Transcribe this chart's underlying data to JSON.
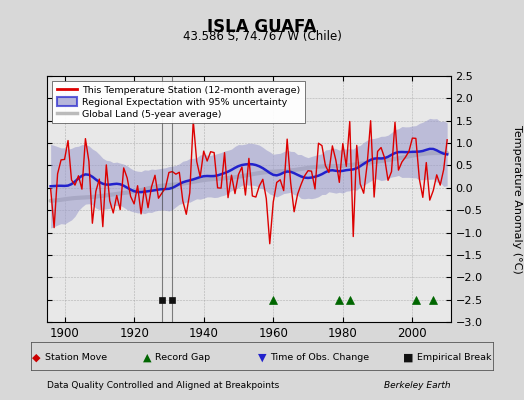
{
  "title": "ISLA GUAFA",
  "subtitle": "43.586 S, 74.767 W (Chile)",
  "ylabel": "Temperature Anomaly (°C)",
  "footer_left": "Data Quality Controlled and Aligned at Breakpoints",
  "footer_right": "Berkeley Earth",
  "xlim": [
    1895,
    2011
  ],
  "ylim": [
    -3.0,
    2.5
  ],
  "yticks": [
    -3,
    -2.5,
    -2,
    -1.5,
    -1,
    -0.5,
    0,
    0.5,
    1,
    1.5,
    2,
    2.5
  ],
  "xticks": [
    1900,
    1920,
    1940,
    1960,
    1980,
    2000
  ],
  "bg_color": "#d8d8d8",
  "plot_bg_color": "#e8e8e8",
  "station_line_color": "#dd0000",
  "regional_line_color": "#2222cc",
  "regional_fill_color": "#9999cc",
  "global_line_color": "#bbbbbb",
  "year_start": 1896,
  "year_end": 2010,
  "record_gap_years": [
    1960,
    1979,
    1982,
    2001,
    2006
  ],
  "empirical_break_years": [
    1928,
    1931
  ],
  "station_move_years": [],
  "time_obs_years": [],
  "marker_y": -2.5,
  "legend_labels": [
    "This Temperature Station (12-month average)",
    "Regional Expectation with 95% uncertainty",
    "Global Land (5-year average)"
  ]
}
